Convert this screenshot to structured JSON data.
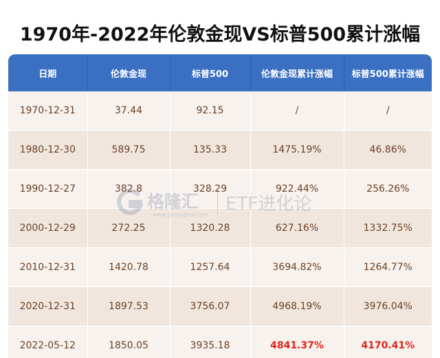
{
  "title": "1970年-2022年伦敦金现VS标普500累计涨幅",
  "table": {
    "headers": [
      "日期",
      "伦敦金现",
      "标普500",
      "伦敦金现累计涨幅",
      "标普500累计涨幅"
    ],
    "rows": [
      [
        "1970-12-31",
        "37.44",
        "92.15",
        "/",
        "/"
      ],
      [
        "1980-12-30",
        "589.75",
        "135.33",
        "1475.19%",
        "46.86%"
      ],
      [
        "1990-12-27",
        "382.8",
        "328.29",
        "922.44%",
        "256.26%"
      ],
      [
        "2000-12-29",
        "272.25",
        "1320.28",
        "627.16%",
        "1332.75%"
      ],
      [
        "2010-12-31",
        "1420.78",
        "1257.64",
        "3694.82%",
        "1264.77%"
      ],
      [
        "2020-12-31",
        "1897.53",
        "3756.07",
        "4968.19%",
        "3976.04%"
      ],
      [
        "2022-05-12",
        "1850.05",
        "3935.18",
        "4841.37%",
        "4170.41%"
      ]
    ]
  },
  "watermark": {
    "brand": "格隆汇",
    "site": "www.gelonghui.com",
    "etf": "ETF进化论"
  },
  "colors": {
    "header_bg": "#3a6fc1",
    "row_odd": "#f7f2ee",
    "row_even": "#f0e6de",
    "cell_text": "#6b3f22",
    "highlight": "#e0241b"
  }
}
